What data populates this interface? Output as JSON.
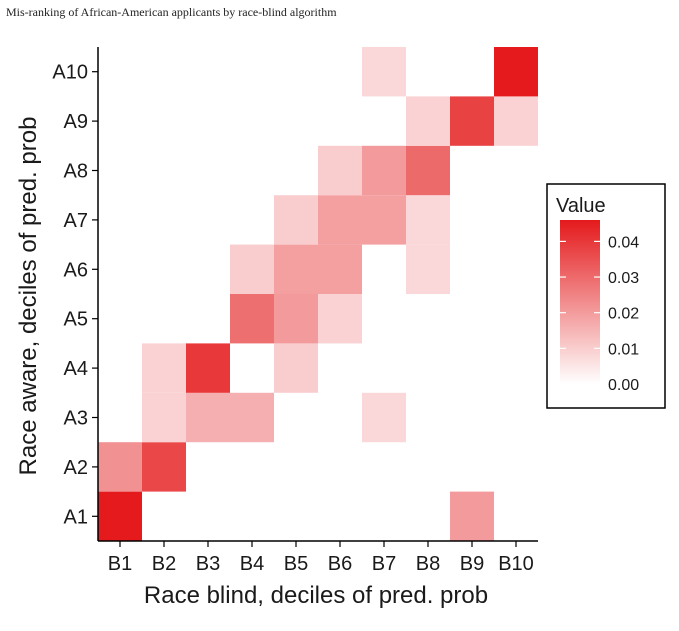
{
  "chart_data": {
    "type": "heatmap",
    "title": "Mis-ranking of African-American applicants by race-blind algorithm",
    "xlabel": "Race blind, deciles of pred. prob",
    "ylabel": "Race aware, deciles of pred. prob",
    "x_categories": [
      "B1",
      "B2",
      "B3",
      "B4",
      "B5",
      "B6",
      "B7",
      "B8",
      "B9",
      "B10"
    ],
    "y_categories": [
      "A1",
      "A2",
      "A3",
      "A4",
      "A5",
      "A6",
      "A7",
      "A8",
      "A9",
      "A10"
    ],
    "cells": [
      {
        "x": "B1",
        "y": "A1",
        "value": 0.046
      },
      {
        "x": "B9",
        "y": "A1",
        "value": 0.02
      },
      {
        "x": "B1",
        "y": "A2",
        "value": 0.022
      },
      {
        "x": "B2",
        "y": "A2",
        "value": 0.037
      },
      {
        "x": "B2",
        "y": "A3",
        "value": 0.009
      },
      {
        "x": "B3",
        "y": "A3",
        "value": 0.016
      },
      {
        "x": "B4",
        "y": "A3",
        "value": 0.016
      },
      {
        "x": "B7",
        "y": "A3",
        "value": 0.008
      },
      {
        "x": "B2",
        "y": "A4",
        "value": 0.009
      },
      {
        "x": "B3",
        "y": "A4",
        "value": 0.04
      },
      {
        "x": "B5",
        "y": "A4",
        "value": 0.01
      },
      {
        "x": "B4",
        "y": "A5",
        "value": 0.029
      },
      {
        "x": "B5",
        "y": "A5",
        "value": 0.02
      },
      {
        "x": "B6",
        "y": "A5",
        "value": 0.009
      },
      {
        "x": "B4",
        "y": "A6",
        "value": 0.01
      },
      {
        "x": "B5",
        "y": "A6",
        "value": 0.019
      },
      {
        "x": "B6",
        "y": "A6",
        "value": 0.019
      },
      {
        "x": "B8",
        "y": "A6",
        "value": 0.008
      },
      {
        "x": "B5",
        "y": "A7",
        "value": 0.01
      },
      {
        "x": "B6",
        "y": "A7",
        "value": 0.019
      },
      {
        "x": "B7",
        "y": "A7",
        "value": 0.019
      },
      {
        "x": "B8",
        "y": "A7",
        "value": 0.008
      },
      {
        "x": "B6",
        "y": "A8",
        "value": 0.01
      },
      {
        "x": "B7",
        "y": "A8",
        "value": 0.02
      },
      {
        "x": "B8",
        "y": "A8",
        "value": 0.03
      },
      {
        "x": "B8",
        "y": "A9",
        "value": 0.009
      },
      {
        "x": "B9",
        "y": "A9",
        "value": 0.038
      },
      {
        "x": "B10",
        "y": "A9",
        "value": 0.009
      },
      {
        "x": "B7",
        "y": "A10",
        "value": 0.008
      },
      {
        "x": "B10",
        "y": "A10",
        "value": 0.046
      }
    ],
    "color_scale": {
      "low": "#ffffff",
      "high": "#e41a1c",
      "min": 0.0,
      "max": 0.046
    },
    "legend": {
      "title": "Value",
      "placement": "right",
      "ticks": [
        0.0,
        0.01,
        0.02,
        0.03,
        0.04
      ],
      "tick_labels": [
        "0.00",
        "0.01",
        "0.02",
        "0.03",
        "0.04"
      ]
    },
    "grid": false
  }
}
